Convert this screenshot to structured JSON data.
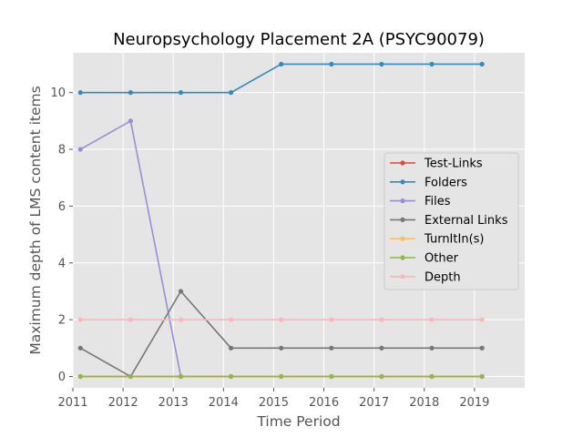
{
  "chart_data": {
    "type": "line",
    "title": "Neuropsychology Placement 2A (PSYC90079)",
    "xlabel": "Time Period",
    "ylabel": "Maximum depth of LMS content items",
    "xlim": [
      2011,
      2020
    ],
    "ylim": [
      -0.4,
      11.4
    ],
    "xticks": [
      2011,
      2012,
      2013,
      2014,
      2015,
      2016,
      2017,
      2018,
      2019
    ],
    "yticks": [
      0,
      2,
      4,
      6,
      8,
      10
    ],
    "x": [
      2011.15,
      2012.15,
      2013.15,
      2014.15,
      2015.15,
      2016.15,
      2017.15,
      2018.15,
      2019.15
    ],
    "grid": true,
    "legend_position": "center-right",
    "series": [
      {
        "name": "Test-Links",
        "color": "#E24A33",
        "values": [
          0,
          0,
          0,
          0,
          0,
          0,
          0,
          0,
          0
        ]
      },
      {
        "name": "Folders",
        "color": "#348ABD",
        "values": [
          10,
          10,
          10,
          10,
          11,
          11,
          11,
          11,
          11
        ]
      },
      {
        "name": "Files",
        "color": "#988ED5",
        "values": [
          8,
          9,
          0,
          null,
          null,
          null,
          null,
          null,
          null
        ]
      },
      {
        "name": "External Links",
        "color": "#777777",
        "values": [
          1,
          0,
          3,
          1,
          1,
          1,
          1,
          1,
          1
        ]
      },
      {
        "name": "TurnItIn(s)",
        "color": "#FBC15E",
        "values": [
          0,
          0,
          0,
          0,
          0,
          0,
          0,
          0,
          0
        ]
      },
      {
        "name": "Other",
        "color": "#8EBA42",
        "values": [
          0,
          0,
          0,
          0,
          0,
          0,
          0,
          0,
          0
        ]
      },
      {
        "name": "Depth",
        "color": "#FFB5B8",
        "values": [
          2,
          2,
          2,
          2,
          2,
          2,
          2,
          2,
          2
        ]
      }
    ]
  }
}
